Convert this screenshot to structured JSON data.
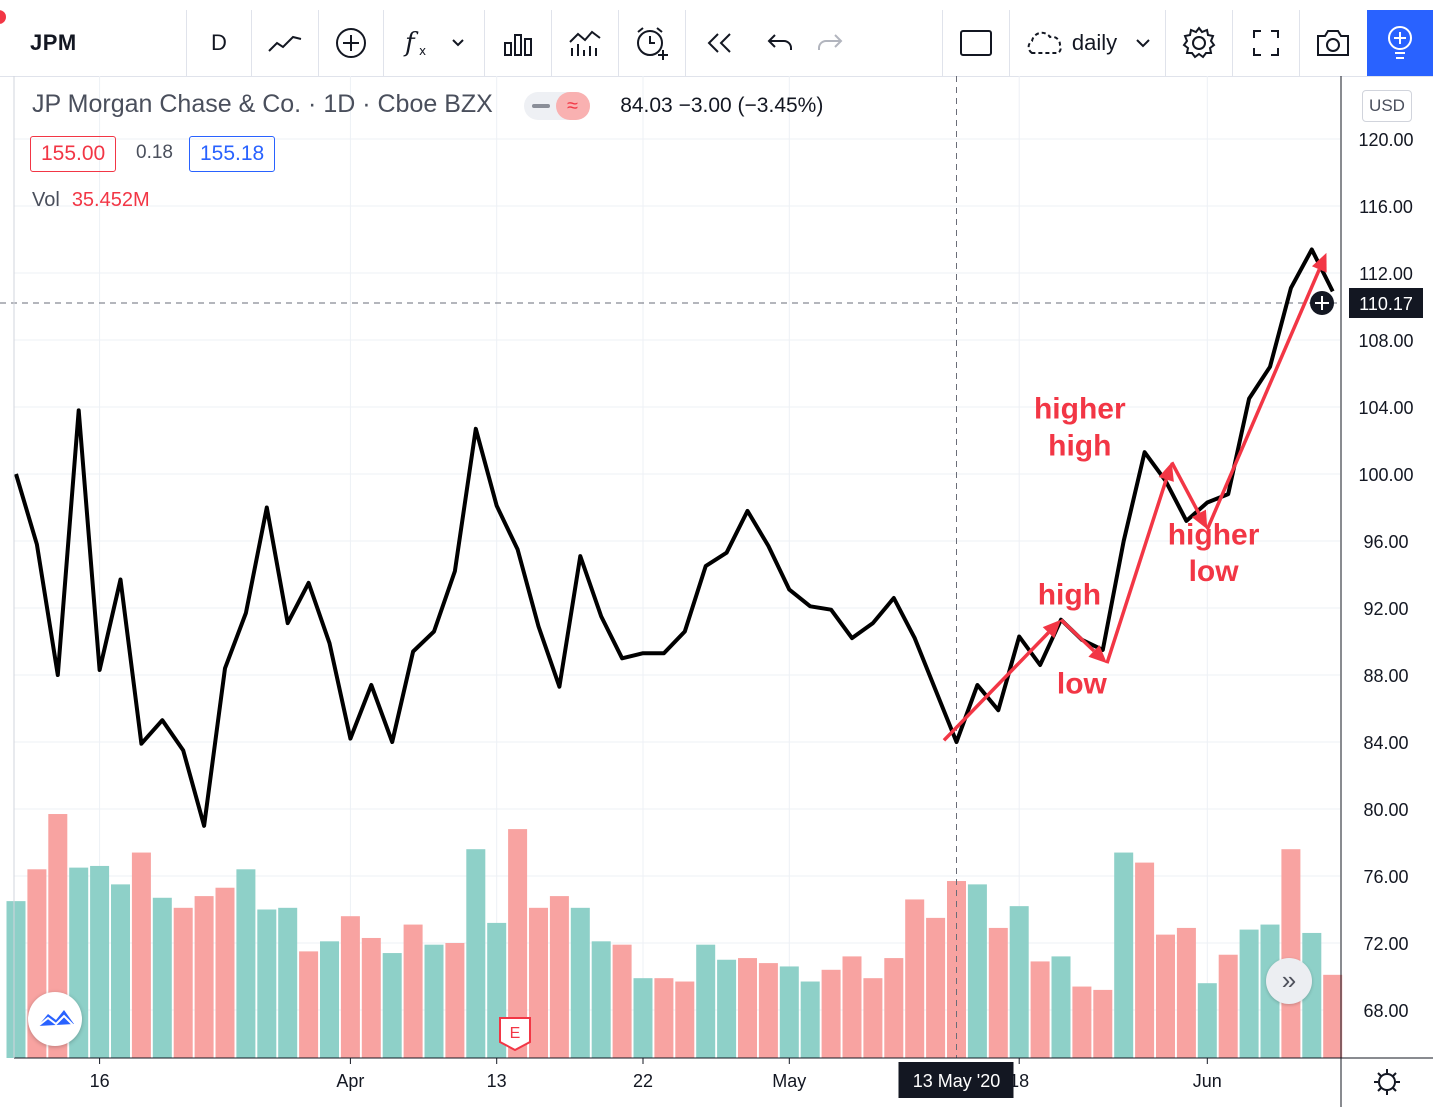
{
  "toolbar": {
    "symbol": "JPM",
    "interval": "D",
    "timeframe_label": "daily",
    "icons": [
      "line-style-icon",
      "add-symbol-icon",
      "indicators-icon",
      "chevron-down-icon",
      "bar-style-icon",
      "templates-icon",
      "alert-icon",
      "replay-icon",
      "undo-icon",
      "redo-icon",
      "layout-icon",
      "cloud-icon",
      "settings-icon",
      "fullscreen-icon",
      "camera-icon",
      "idea-icon"
    ]
  },
  "legend": {
    "title": "JP Morgan Chase & Co. · 1D · Cboe BZX",
    "pill_glyph": "≈",
    "ohlc": "84.03 −3.00 (−3.45%)",
    "sell_price": "155.00",
    "spread": "0.18",
    "buy_price": "155.18",
    "vol_label": "Vol",
    "vol_value": "35.452M"
  },
  "price_axis": {
    "currency": "USD",
    "ticks": [
      "120.00",
      "116.00",
      "112.00",
      "108.00",
      "104.00",
      "100.00",
      "96.00",
      "92.00",
      "88.00",
      "84.00",
      "80.00",
      "76.00",
      "72.00",
      "68.00"
    ],
    "crosshair_label": "110.17"
  },
  "time_axis": {
    "ticks": [
      {
        "label": "16",
        "index": 4
      },
      {
        "label": "Apr",
        "index": 16
      },
      {
        "label": "13",
        "index": 23
      },
      {
        "label": "22",
        "index": 30
      },
      {
        "label": "May",
        "index": 37
      },
      {
        "label": "18",
        "index": 48
      },
      {
        "label": "Jun",
        "index": 57
      }
    ],
    "crosshair_label": "13 May '20",
    "crosshair_index": 45
  },
  "chart_data": {
    "type": "line",
    "symbol": "JPM",
    "ylim": [
      66,
      122
    ],
    "y_ticks": [
      68,
      72,
      76,
      80,
      84,
      88,
      92,
      96,
      100,
      104,
      108,
      112,
      116,
      120
    ],
    "x_domain": [
      0,
      63
    ],
    "crosshair": {
      "index": 45,
      "price": 110.17
    },
    "close": [
      100.0,
      95.8,
      88.0,
      103.8,
      88.3,
      93.7,
      83.9,
      85.3,
      83.5,
      79.0,
      88.4,
      91.7,
      98.0,
      91.1,
      93.5,
      89.9,
      84.2,
      87.4,
      84.0,
      89.4,
      90.6,
      94.2,
      102.7,
      98.1,
      95.5,
      90.9,
      87.3,
      95.1,
      91.5,
      89.0,
      89.3,
      89.3,
      90.6,
      94.5,
      95.3,
      97.8,
      95.7,
      93.1,
      92.1,
      91.9,
      90.2,
      91.1,
      92.6,
      90.2,
      87.1,
      84.0,
      87.4,
      85.9,
      90.3,
      88.6,
      91.3,
      90.1,
      89.5,
      96.0,
      101.3,
      99.6,
      97.2,
      98.3,
      98.8,
      104.5,
      106.4,
      111.1,
      113.4,
      110.9
    ],
    "volume_direction": [
      "up",
      "down",
      "down",
      "up",
      "up",
      "up",
      "down",
      "up",
      "down",
      "down",
      "down",
      "up",
      "up",
      "up",
      "down",
      "up",
      "down",
      "down",
      "up",
      "down",
      "up",
      "down",
      "up",
      "up",
      "down",
      "down",
      "down",
      "up",
      "up",
      "down",
      "up",
      "down",
      "down",
      "up",
      "up",
      "down",
      "down",
      "up",
      "up",
      "down",
      "down",
      "down",
      "down",
      "down",
      "down",
      "down",
      "up",
      "down",
      "up",
      "down",
      "up",
      "down",
      "down",
      "up",
      "down",
      "down",
      "down",
      "up",
      "down",
      "up",
      "up",
      "down",
      "up",
      "down"
    ],
    "volume": [
      74.5,
      76.4,
      79.7,
      76.5,
      76.6,
      75.5,
      77.4,
      74.7,
      74.1,
      74.8,
      75.3,
      76.4,
      74.0,
      74.1,
      71.5,
      72.1,
      73.6,
      72.3,
      71.4,
      73.1,
      71.9,
      72.0,
      77.6,
      73.2,
      78.8,
      74.1,
      74.8,
      74.1,
      72.1,
      71.9,
      69.9,
      69.9,
      69.7,
      71.9,
      71.0,
      71.1,
      70.8,
      70.6,
      69.7,
      70.4,
      71.2,
      69.9,
      71.1,
      74.6,
      73.5,
      75.7,
      75.5,
      72.9,
      74.2,
      70.9,
      71.2,
      69.4,
      69.2,
      77.4,
      76.8,
      72.5,
      72.9,
      69.6,
      71.3,
      72.8,
      73.1,
      77.6,
      72.6,
      70.1
    ],
    "annotations": [
      {
        "text": "high",
        "x": 50.4,
        "y": 92.2
      },
      {
        "text": "low",
        "x": 51.0,
        "y": 86.9
      },
      {
        "text": "higher",
        "x": 50.9,
        "y": 103.3
      },
      {
        "text": "high",
        "x": 50.9,
        "y": 101.1
      },
      {
        "text": "higher",
        "x": 57.3,
        "y": 95.8
      },
      {
        "text": "low",
        "x": 57.3,
        "y": 93.6
      }
    ],
    "trend_arrows": [
      {
        "from": [
          44.4,
          84.1
        ],
        "to": [
          50.0,
          91.3
        ]
      },
      {
        "from": [
          50.0,
          91.3
        ],
        "to": [
          52.2,
          88.7
        ]
      },
      {
        "from": [
          52.2,
          88.7
        ],
        "to": [
          55.3,
          100.7
        ]
      },
      {
        "from": [
          55.3,
          100.7
        ],
        "to": [
          57.0,
          96.7
        ]
      },
      {
        "from": [
          57.0,
          96.7
        ],
        "to": [
          62.7,
          113.2
        ]
      }
    ],
    "colors": {
      "line": "#000000",
      "volume_up": "#8ed0c8",
      "volume_down": "#f8a3a1",
      "annotation": "#f23645",
      "grid": "#edf0f5"
    },
    "grid": true
  }
}
